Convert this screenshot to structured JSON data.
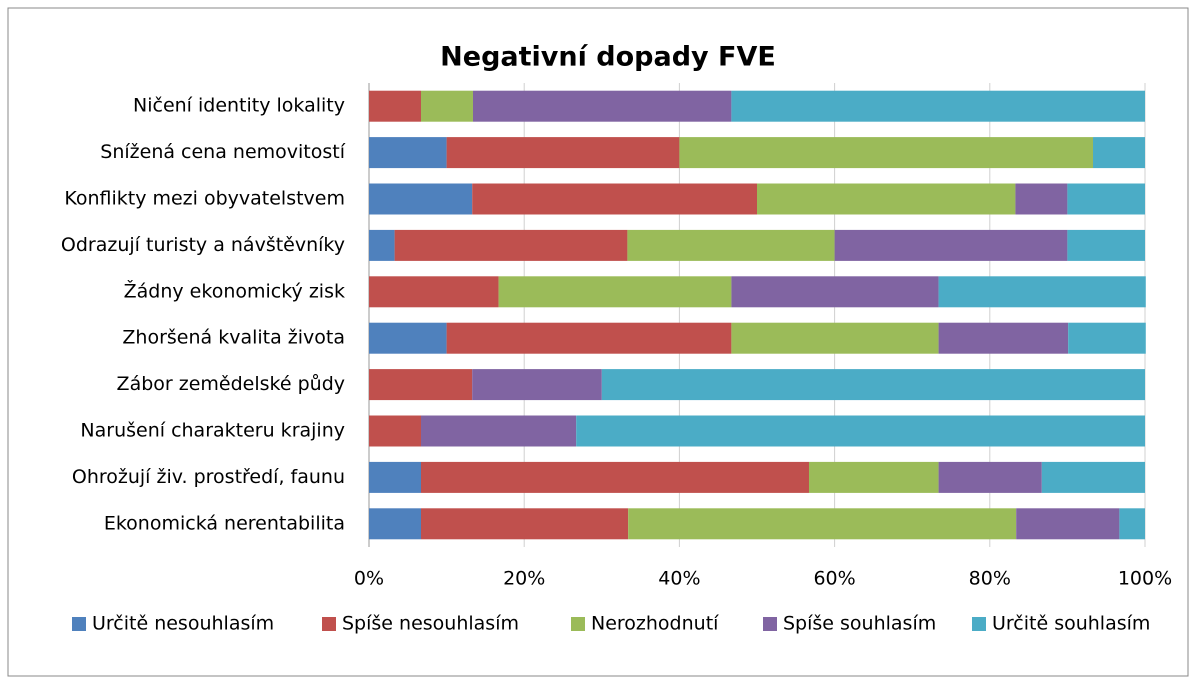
{
  "chart_data": {
    "type": "stacked_bar_horizontal",
    "title": "Negativní dopady FVE",
    "categories": [
      "Ničení identity lokality",
      "Snížená cena nemovitostí",
      "Konflikty mezi obyvatelstvem",
      "Odrazují turisty a návštěvníky",
      "Žádny ekonomický zisk",
      "Zhoršená kvalita života",
      "Zábor zemědelské půdy",
      "Narušení charakteru krajiny",
      "Ohrožují živ. prostředí, faunu",
      "Ekonomická nerentabilita"
    ],
    "series": [
      {
        "name": "Určitě nesouhlasím",
        "color": "#4f81bd",
        "values": [
          0,
          10,
          13.3,
          3.3,
          0,
          10,
          0,
          0,
          6.7,
          6.7
        ]
      },
      {
        "name": "Spíše nesouhlasím",
        "color": "#c0504d",
        "values": [
          6.7,
          30,
          36.7,
          30,
          16.7,
          36.7,
          13.3,
          6.7,
          50,
          26.7
        ]
      },
      {
        "name": "Nerozhodnutí",
        "color": "#9bbb59",
        "values": [
          6.7,
          53.3,
          33.3,
          26.7,
          30,
          26.7,
          0,
          0,
          16.7,
          50
        ]
      },
      {
        "name": "Spíše souhlasím",
        "color": "#8064a2",
        "values": [
          33.3,
          0,
          6.7,
          30,
          26.7,
          16.7,
          16.7,
          20,
          13.3,
          13.3
        ]
      },
      {
        "name": "Určitě souhlasím",
        "color": "#4bacc6",
        "values": [
          53.3,
          6.7,
          10,
          10,
          26.7,
          10,
          70,
          73.3,
          13.3,
          3.3
        ]
      }
    ],
    "xlim": [
      0,
      100
    ],
    "xticks": [
      {
        "value": 0,
        "label": "0%"
      },
      {
        "value": 20,
        "label": "20%"
      },
      {
        "value": 40,
        "label": "40%"
      },
      {
        "value": 60,
        "label": "60%"
      },
      {
        "value": 80,
        "label": "80%"
      },
      {
        "value": 100,
        "label": "100%"
      }
    ],
    "grid": true,
    "legend": "bottom"
  }
}
